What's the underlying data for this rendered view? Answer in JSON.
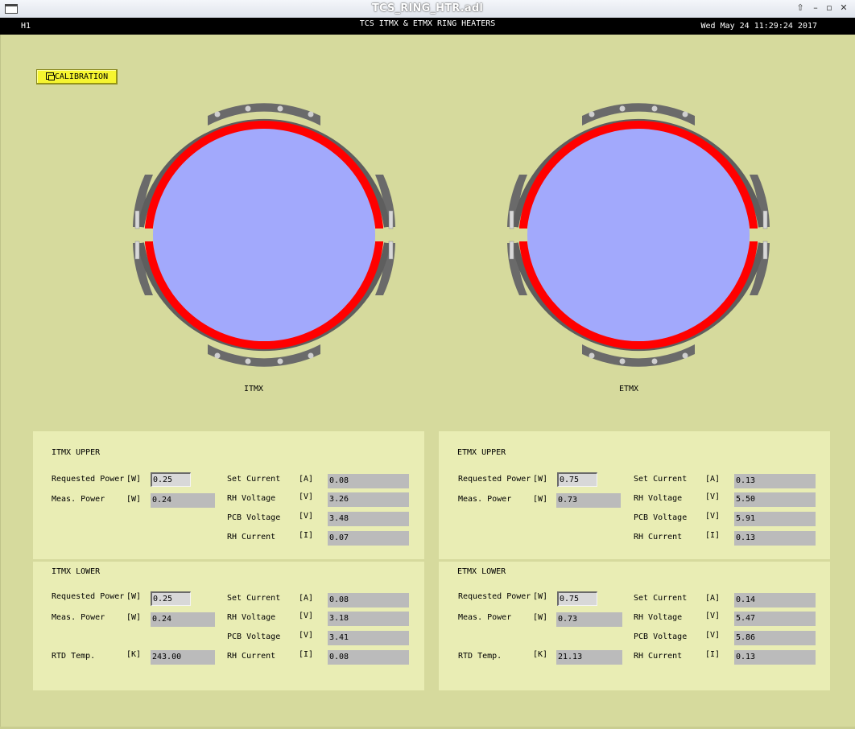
{
  "window": {
    "title": "TCS_RING_HTR.adl"
  },
  "header": {
    "site": "H1",
    "title": "TCS ITMX & ETMX RING HEATERS",
    "datetime": "Wed May 24 11:29:24 2017"
  },
  "calibration_button": "CALIBRATION",
  "rings": {
    "itmx_label": "ITMX",
    "etmx_label": "ETMX"
  },
  "colors": {
    "background": "#d6da9d",
    "panel": "#e9edb4",
    "mirror": "#a2a9fc",
    "heater": "#ff0000",
    "frame": "#6a6a6a",
    "button": "#f6f530"
  },
  "labels": {
    "requested_power": "Requested Power",
    "meas_power": "Meas. Power",
    "set_current": "Set Current",
    "rh_voltage": "RH Voltage",
    "pcb_voltage": "PCB Voltage",
    "rh_current": "RH Current",
    "rtd_temp": "RTD Temp.",
    "unit_w": "[W]",
    "unit_a": "[A]",
    "unit_v": "[V]",
    "unit_i": "[I]",
    "unit_k": "[K]"
  },
  "itmx_upper": {
    "title": "ITMX UPPER",
    "requested_power": "0.25",
    "meas_power": "0.24",
    "set_current": "0.08",
    "rh_voltage": "3.26",
    "pcb_voltage": "3.48",
    "rh_current": "0.07"
  },
  "itmx_lower": {
    "title": "ITMX LOWER",
    "requested_power": "0.25",
    "meas_power": "0.24",
    "rtd_temp": "243.00",
    "set_current": "0.08",
    "rh_voltage": "3.18",
    "pcb_voltage": "3.41",
    "rh_current": "0.08"
  },
  "etmx_upper": {
    "title": "ETMX UPPER",
    "requested_power": "0.75",
    "meas_power": "0.73",
    "set_current": "0.13",
    "rh_voltage": "5.50",
    "pcb_voltage": "5.91",
    "rh_current": "0.13"
  },
  "etmx_lower": {
    "title": "ETMX LOWER",
    "requested_power": "0.75",
    "meas_power": "0.73",
    "rtd_temp": "21.13",
    "set_current": "0.14",
    "rh_voltage": "5.47",
    "pcb_voltage": "5.86",
    "rh_current": "0.13"
  }
}
